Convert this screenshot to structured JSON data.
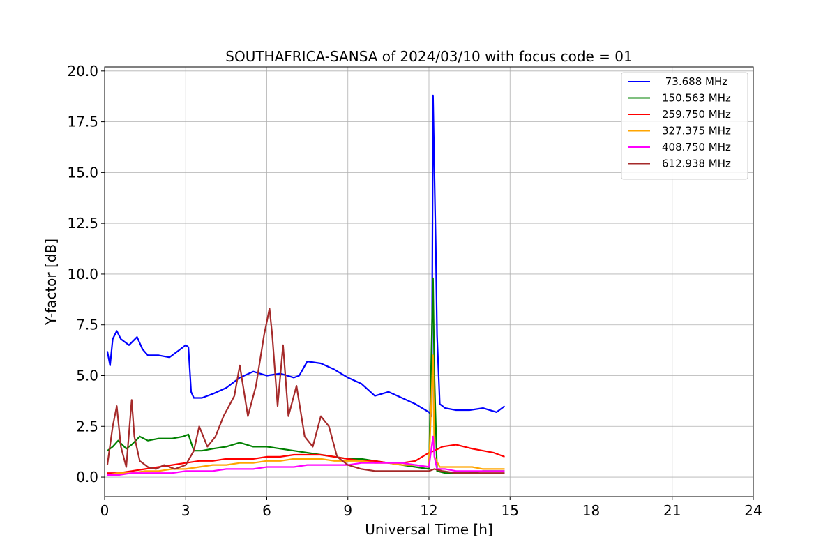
{
  "chart_data": {
    "type": "line",
    "title": "SOUTHAFRICA-SANSA of 2024/03/10 with focus code = 01",
    "xlabel": "Universal Time [h]",
    "ylabel": "Y-factor [dB]",
    "xlim": [
      0,
      24
    ],
    "ylim": [
      -0.96,
      20.2
    ],
    "xticks": [
      0,
      3,
      6,
      9,
      12,
      15,
      18,
      21,
      24
    ],
    "xtick_labels": [
      "0",
      "3",
      "6",
      "9",
      "12",
      "15",
      "18",
      "21",
      "24"
    ],
    "yticks": [
      0,
      2.5,
      5,
      7.5,
      10,
      12.5,
      15,
      17.5,
      20
    ],
    "ytick_labels": [
      "0.0",
      "2.5",
      "5.0",
      "7.5",
      "10.0",
      "12.5",
      "15.0",
      "17.5",
      "20.0"
    ],
    "grid": true,
    "legend_position": "top-right",
    "series": [
      {
        "name": " 73.688 MHz",
        "color": "#0000ff",
        "x": [
          0.1,
          0.2,
          0.3,
          0.45,
          0.6,
          0.9,
          1.2,
          1.4,
          1.6,
          2.0,
          2.4,
          2.8,
          3.0,
          3.1,
          3.2,
          3.3,
          3.6,
          4.0,
          4.5,
          5.0,
          5.5,
          6.0,
          6.5,
          7.0,
          7.2,
          7.5,
          8.0,
          8.5,
          9.0,
          9.5,
          10.0,
          10.5,
          11.0,
          11.5,
          12.0,
          12.1,
          12.15,
          12.2,
          12.25,
          12.3,
          12.4,
          12.6,
          13.0,
          13.5,
          14.0,
          14.5,
          14.8
        ],
        "y": [
          6.2,
          5.5,
          6.8,
          7.2,
          6.8,
          6.5,
          6.9,
          6.3,
          6.0,
          6.0,
          5.9,
          6.3,
          6.5,
          6.4,
          4.2,
          3.9,
          3.9,
          4.1,
          4.4,
          4.9,
          5.2,
          5.0,
          5.1,
          4.9,
          5.0,
          5.7,
          5.6,
          5.3,
          4.9,
          4.6,
          4.0,
          4.2,
          3.9,
          3.6,
          3.2,
          3.0,
          18.8,
          15.0,
          11.5,
          7.0,
          3.6,
          3.4,
          3.3,
          3.3,
          3.4,
          3.2,
          3.5
        ]
      },
      {
        "name": "150.563 MHz",
        "color": "#008000",
        "x": [
          0.1,
          0.3,
          0.5,
          0.8,
          1.0,
          1.3,
          1.6,
          2.0,
          2.5,
          2.9,
          3.1,
          3.3,
          3.6,
          4.0,
          4.5,
          5.0,
          5.5,
          6.0,
          6.5,
          7.0,
          7.5,
          8.0,
          8.5,
          9.0,
          9.5,
          10.0,
          10.5,
          11.0,
          11.5,
          12.0,
          12.15,
          12.2,
          12.3,
          12.6,
          13.0,
          13.5,
          14.0,
          14.5,
          14.8
        ],
        "y": [
          1.3,
          1.5,
          1.8,
          1.4,
          1.6,
          2.0,
          1.8,
          1.9,
          1.9,
          2.0,
          2.1,
          1.3,
          1.3,
          1.4,
          1.5,
          1.7,
          1.5,
          1.5,
          1.4,
          1.3,
          1.2,
          1.1,
          1.0,
          0.9,
          0.9,
          0.8,
          0.7,
          0.6,
          0.5,
          0.4,
          9.8,
          5.0,
          0.3,
          0.2,
          0.2,
          0.2,
          0.3,
          0.3,
          0.3
        ]
      },
      {
        "name": "259.750 MHz",
        "color": "#ff0000",
        "x": [
          0.1,
          0.5,
          1.0,
          1.5,
          2.0,
          2.5,
          3.0,
          3.5,
          4.0,
          4.5,
          5.0,
          5.5,
          6.0,
          6.5,
          7.0,
          7.5,
          8.0,
          8.5,
          9.0,
          9.5,
          10.0,
          10.5,
          11.0,
          11.5,
          12.0,
          12.2,
          12.5,
          13.0,
          13.3,
          13.6,
          14.0,
          14.4,
          14.8
        ],
        "y": [
          0.2,
          0.2,
          0.3,
          0.4,
          0.5,
          0.6,
          0.7,
          0.8,
          0.8,
          0.9,
          0.9,
          0.9,
          1.0,
          1.0,
          1.1,
          1.1,
          1.1,
          1.0,
          0.9,
          0.8,
          0.8,
          0.7,
          0.7,
          0.8,
          1.2,
          1.3,
          1.5,
          1.6,
          1.5,
          1.4,
          1.3,
          1.2,
          1.0
        ]
      },
      {
        "name": "327.375 MHz",
        "color": "#ffa500",
        "x": [
          0.1,
          0.5,
          1.0,
          1.5,
          2.0,
          2.5,
          3.0,
          3.5,
          4.0,
          4.5,
          5.0,
          5.5,
          6.0,
          6.5,
          7.0,
          7.5,
          8.0,
          8.5,
          9.0,
          9.5,
          10.0,
          10.5,
          11.0,
          11.5,
          12.0,
          12.15,
          12.2,
          12.4,
          12.8,
          13.2,
          13.6,
          14.0,
          14.4,
          14.8
        ],
        "y": [
          0.1,
          0.2,
          0.2,
          0.3,
          0.3,
          0.4,
          0.4,
          0.5,
          0.6,
          0.6,
          0.7,
          0.7,
          0.8,
          0.8,
          0.9,
          0.9,
          0.9,
          0.8,
          0.8,
          0.8,
          0.7,
          0.7,
          0.6,
          0.6,
          0.5,
          6.0,
          1.0,
          0.5,
          0.5,
          0.5,
          0.5,
          0.4,
          0.4,
          0.4
        ]
      },
      {
        "name": "408.750 MHz",
        "color": "#ff00ff",
        "x": [
          0.1,
          0.5,
          1.0,
          1.5,
          2.0,
          2.5,
          3.0,
          3.5,
          4.0,
          4.5,
          5.0,
          5.5,
          6.0,
          6.5,
          7.0,
          7.5,
          8.0,
          8.5,
          9.0,
          9.5,
          10.0,
          10.5,
          11.0,
          11.5,
          12.0,
          12.15,
          12.2,
          12.3,
          12.6,
          13.0,
          13.5,
          14.0,
          14.4,
          14.8
        ],
        "y": [
          0.1,
          0.1,
          0.2,
          0.2,
          0.2,
          0.2,
          0.3,
          0.3,
          0.3,
          0.4,
          0.4,
          0.4,
          0.5,
          0.5,
          0.5,
          0.6,
          0.6,
          0.6,
          0.6,
          0.7,
          0.7,
          0.7,
          0.7,
          0.6,
          0.5,
          2.0,
          1.0,
          0.4,
          0.4,
          0.3,
          0.3,
          0.3,
          0.3,
          0.3
        ]
      },
      {
        "name": "612.938 MHz",
        "color": "#a52a2a",
        "x": [
          0.1,
          0.3,
          0.45,
          0.6,
          0.8,
          1.0,
          1.1,
          1.3,
          1.6,
          1.9,
          2.2,
          2.6,
          3.0,
          3.3,
          3.5,
          3.8,
          4.1,
          4.4,
          4.8,
          5.0,
          5.3,
          5.6,
          5.9,
          6.1,
          6.2,
          6.4,
          6.6,
          6.8,
          7.1,
          7.4,
          7.7,
          8.0,
          8.3,
          8.6,
          9.0,
          9.5,
          10.0,
          10.5,
          11.0,
          11.5,
          12.0,
          12.2,
          12.5,
          13.0,
          13.5,
          14.0,
          14.4,
          14.8
        ],
        "y": [
          0.6,
          2.5,
          3.5,
          1.5,
          0.5,
          3.8,
          2.0,
          0.8,
          0.5,
          0.4,
          0.6,
          0.4,
          0.6,
          1.3,
          2.5,
          1.5,
          2.0,
          3.0,
          4.0,
          5.5,
          3.0,
          4.5,
          7.0,
          8.3,
          7.0,
          3.5,
          6.5,
          3.0,
          4.5,
          2.0,
          1.5,
          3.0,
          2.5,
          1.0,
          0.6,
          0.4,
          0.3,
          0.3,
          0.3,
          0.3,
          0.3,
          0.4,
          0.3,
          0.2,
          0.2,
          0.2,
          0.2,
          0.2
        ]
      }
    ]
  }
}
